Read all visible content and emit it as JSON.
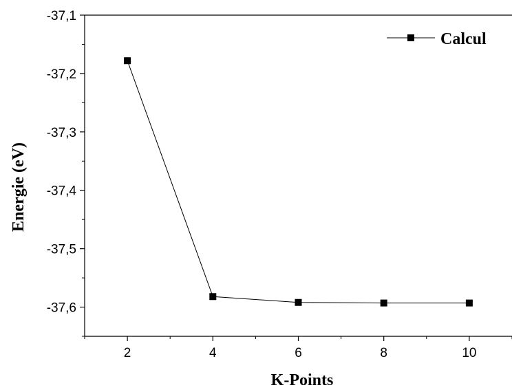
{
  "chart_data": {
    "type": "line",
    "xlabel": "K-Points",
    "ylabel": "Energie (eV)",
    "xlim": [
      1,
      11
    ],
    "ylim": [
      -37.65,
      -37.1
    ],
    "xticks": [
      2,
      4,
      6,
      8,
      10
    ],
    "yticks": [
      -37.1,
      -37.2,
      -37.3,
      -37.4,
      -37.5,
      -37.6
    ],
    "ytick_labels": [
      "-37,1",
      "-37,2",
      "-37,3",
      "-37,4",
      "-37,5",
      "-37,6"
    ],
    "xtick_labels": [
      "2",
      "4",
      "6",
      "8",
      "10"
    ],
    "series": [
      {
        "name": "Calcul",
        "marker": "square",
        "color": "#000000",
        "x": [
          2,
          4,
          6,
          8,
          10
        ],
        "y": [
          -37.178,
          -37.582,
          -37.592,
          -37.593,
          -37.593
        ]
      }
    ],
    "legend_position": "top-right",
    "grid": false
  }
}
